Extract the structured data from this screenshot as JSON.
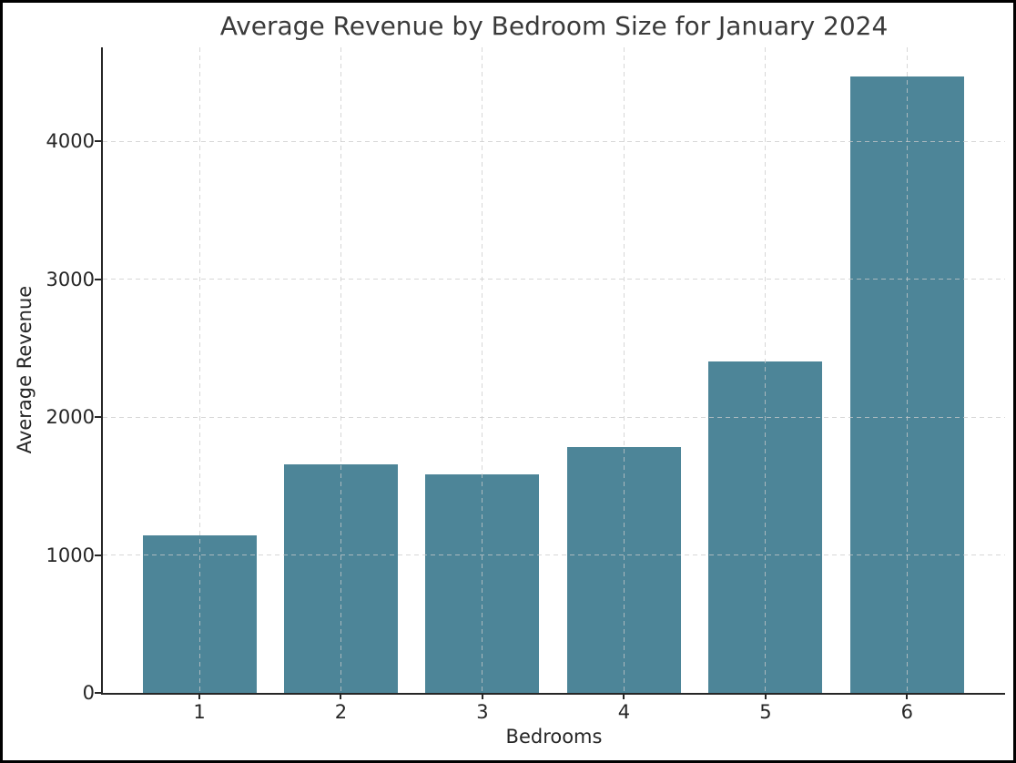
{
  "chart_data": {
    "type": "bar",
    "title": "Average Revenue by Bedroom Size for January 2024",
    "xlabel": "Bedrooms",
    "ylabel": "Average Revenue",
    "categories": [
      "1",
      "2",
      "3",
      "4",
      "5",
      "6"
    ],
    "values": [
      1145,
      1660,
      1585,
      1785,
      2400,
      4470
    ],
    "yticks": [
      0,
      1000,
      2000,
      3000,
      4000
    ],
    "ylim": [
      0,
      4680
    ],
    "bar_color": "#4d8598",
    "grid": {
      "style": "dashed",
      "color": "#cccccc",
      "horizontal": true,
      "vertical": true,
      "drawn_above_bars": true
    },
    "legend_position": "none",
    "background_color": "#ffffff",
    "frame_border_color": "#000000",
    "text_color": "#262626"
  }
}
